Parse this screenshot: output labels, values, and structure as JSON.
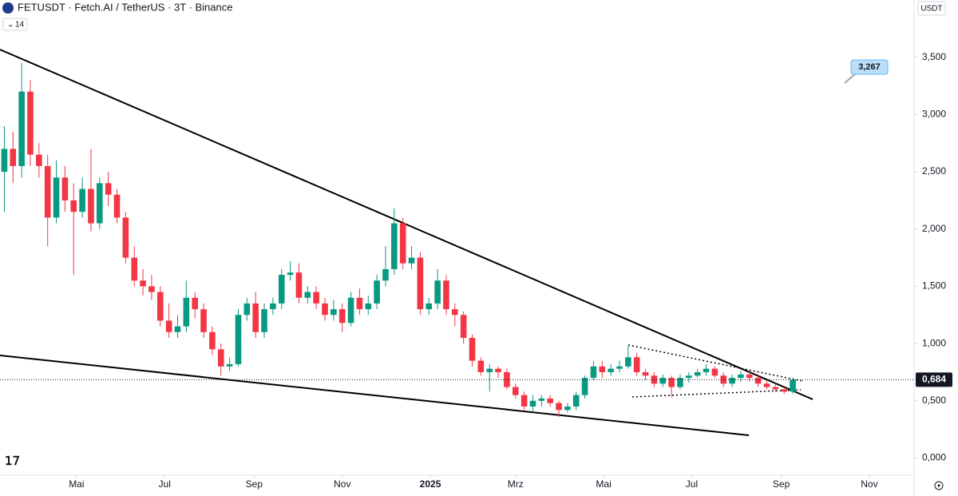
{
  "chart_data": {
    "type": "candlestick",
    "title": "FETUSDT · Fetch.AI / TetherUS · 3T · Binance",
    "indicator": "14",
    "currency": "USDT",
    "annotation": "3,267",
    "last_price": {
      "value": 0.684,
      "label": "0,684"
    },
    "up_color": "#089981",
    "down_color": "#f23645",
    "grid": false,
    "xlim": [
      -53,
      580
    ],
    "ylim": [
      -0.15,
      4.0
    ],
    "xticks": [
      {
        "value": 0,
        "label": "Mai"
      },
      {
        "value": 61,
        "label": "Jul"
      },
      {
        "value": 123,
        "label": "Sep"
      },
      {
        "value": 184,
        "label": "Nov"
      },
      {
        "value": 245,
        "label": "2025"
      },
      {
        "value": 304,
        "label": "Mrz"
      },
      {
        "value": 365,
        "label": "Mai"
      },
      {
        "value": 426,
        "label": "Jul"
      },
      {
        "value": 488,
        "label": "Sep"
      },
      {
        "value": 549,
        "label": "Nov"
      }
    ],
    "yticks": [
      {
        "value": 0,
        "label": "0,000"
      },
      {
        "value": 0.5,
        "label": "0,500"
      },
      {
        "value": 1,
        "label": "1,000"
      },
      {
        "value": 1.5,
        "label": "1,500"
      },
      {
        "value": 2,
        "label": "2,000"
      },
      {
        "value": 2.5,
        "label": "2,500"
      },
      {
        "value": 3,
        "label": "3,000"
      },
      {
        "value": 3.5,
        "label": "3,500"
      }
    ],
    "x": [
      -50,
      -44,
      -38,
      -32,
      -26,
      -20,
      -14,
      -8,
      -2,
      4,
      10,
      16,
      22,
      28,
      34,
      40,
      46,
      52,
      58,
      64,
      70,
      76,
      82,
      88,
      94,
      100,
      106,
      112,
      118,
      124,
      130,
      136,
      142,
      148,
      154,
      160,
      166,
      172,
      178,
      184,
      190,
      196,
      202,
      208,
      214,
      220,
      226,
      232,
      238,
      244,
      250,
      256,
      262,
      268,
      274,
      280,
      286,
      292,
      298,
      304,
      310,
      316,
      322,
      328,
      334,
      340,
      346,
      352,
      358,
      364,
      370,
      376,
      382,
      388,
      394,
      400,
      406,
      412,
      418,
      424,
      430,
      436,
      442,
      448,
      454,
      460,
      466,
      472,
      478,
      484,
      490,
      496
    ],
    "open": [
      2.5,
      2.7,
      2.55,
      3.2,
      2.65,
      2.55,
      2.1,
      2.45,
      2.25,
      2.15,
      2.35,
      2.05,
      2.4,
      2.3,
      2.1,
      1.75,
      1.55,
      1.5,
      1.45,
      1.2,
      1.1,
      1.15,
      1.4,
      1.3,
      1.1,
      0.95,
      0.8,
      0.82,
      1.25,
      1.35,
      1.1,
      1.3,
      1.35,
      1.6,
      1.62,
      1.4,
      1.45,
      1.35,
      1.25,
      1.3,
      1.18,
      1.4,
      1.3,
      1.35,
      1.55,
      1.65,
      2.05,
      1.7,
      1.75,
      1.3,
      1.35,
      1.55,
      1.3,
      1.25,
      1.05,
      0.85,
      0.75,
      0.78,
      0.75,
      0.62,
      0.55,
      0.45,
      0.5,
      0.52,
      0.48,
      0.42,
      0.45,
      0.55,
      0.7,
      0.8,
      0.75,
      0.78,
      0.8,
      0.88,
      0.75,
      0.72,
      0.65,
      0.7,
      0.62,
      0.7,
      0.72,
      0.75,
      0.78,
      0.72,
      0.65,
      0.7,
      0.73,
      0.7,
      0.65,
      0.62,
      0.6,
      0.58
    ],
    "high": [
      2.9,
      2.85,
      3.45,
      3.3,
      2.75,
      2.65,
      2.6,
      2.55,
      2.4,
      2.45,
      2.7,
      2.45,
      2.5,
      2.35,
      2.15,
      1.85,
      1.65,
      1.6,
      1.5,
      1.35,
      1.25,
      1.55,
      1.45,
      1.35,
      1.15,
      1.0,
      0.88,
      1.3,
      1.4,
      1.45,
      1.35,
      1.4,
      1.65,
      1.72,
      1.7,
      1.5,
      1.5,
      1.4,
      1.38,
      1.35,
      1.45,
      1.48,
      1.42,
      1.6,
      1.85,
      2.18,
      2.1,
      1.85,
      1.8,
      1.4,
      1.65,
      1.6,
      1.35,
      1.28,
      1.08,
      0.88,
      0.82,
      0.8,
      0.78,
      0.65,
      0.58,
      0.55,
      0.55,
      0.55,
      0.5,
      0.48,
      0.58,
      0.72,
      0.85,
      0.85,
      0.82,
      0.85,
      0.98,
      0.92,
      0.78,
      0.75,
      0.73,
      0.72,
      0.73,
      0.75,
      0.78,
      0.82,
      0.8,
      0.75,
      0.73,
      0.76,
      0.75,
      0.72,
      0.68,
      0.65,
      0.62,
      0.7
    ],
    "low": [
      2.15,
      2.4,
      2.45,
      2.55,
      2.45,
      1.85,
      2.05,
      2.15,
      1.6,
      2.1,
      1.98,
      2.0,
      2.2,
      2.05,
      1.7,
      1.5,
      1.42,
      1.38,
      1.15,
      1.05,
      1.05,
      1.1,
      1.22,
      1.05,
      0.9,
      0.72,
      0.76,
      0.8,
      1.2,
      1.05,
      1.05,
      1.25,
      1.3,
      1.55,
      1.35,
      1.35,
      1.3,
      1.2,
      1.2,
      1.1,
      1.15,
      1.25,
      1.25,
      1.3,
      1.5,
      1.6,
      1.65,
      1.65,
      1.25,
      1.25,
      1.3,
      1.25,
      1.15,
      1.0,
      0.8,
      0.72,
      0.58,
      0.7,
      0.6,
      0.52,
      0.42,
      0.4,
      0.45,
      0.45,
      0.36,
      0.4,
      0.42,
      0.52,
      0.68,
      0.7,
      0.72,
      0.75,
      0.78,
      0.72,
      0.68,
      0.62,
      0.62,
      0.53,
      0.6,
      0.66,
      0.7,
      0.72,
      0.7,
      0.62,
      0.62,
      0.67,
      0.67,
      0.62,
      0.6,
      0.58,
      0.56,
      0.56
    ],
    "close": [
      2.7,
      2.55,
      3.2,
      2.65,
      2.55,
      2.1,
      2.45,
      2.25,
      2.15,
      2.35,
      2.05,
      2.4,
      2.3,
      2.1,
      1.75,
      1.55,
      1.5,
      1.45,
      1.2,
      1.1,
      1.15,
      1.4,
      1.3,
      1.1,
      0.95,
      0.8,
      0.82,
      1.25,
      1.35,
      1.1,
      1.3,
      1.35,
      1.6,
      1.62,
      1.4,
      1.45,
      1.35,
      1.25,
      1.3,
      1.18,
      1.4,
      1.3,
      1.35,
      1.55,
      1.65,
      2.05,
      1.7,
      1.75,
      1.3,
      1.35,
      1.55,
      1.3,
      1.25,
      1.05,
      0.85,
      0.75,
      0.78,
      0.75,
      0.62,
      0.55,
      0.45,
      0.5,
      0.52,
      0.48,
      0.42,
      0.45,
      0.55,
      0.7,
      0.8,
      0.75,
      0.78,
      0.8,
      0.88,
      0.75,
      0.72,
      0.65,
      0.7,
      0.62,
      0.7,
      0.72,
      0.75,
      0.78,
      0.72,
      0.65,
      0.7,
      0.73,
      0.7,
      0.65,
      0.62,
      0.6,
      0.58,
      0.684
    ]
  }
}
